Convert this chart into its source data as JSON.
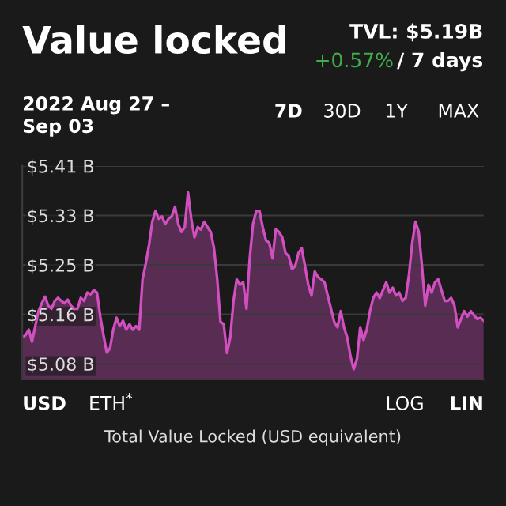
{
  "chart_data": {
    "type": "area",
    "title": "Value locked",
    "annotations": [
      "TVL: $5.19B",
      "+0.57%",
      "/ 7 days",
      "2022 Aug 27 –\nSep 03",
      "7D",
      "30D",
      "1Y",
      "MAX",
      "USD",
      "ETH$^{*}$",
      "LOG",
      "LIN",
      "Total Value Locked (USD equivalent)"
    ],
    "categories": [
      null,
      null,
      null,
      null,
      null,
      null,
      null,
      null,
      null,
      null,
      null,
      null,
      null,
      null,
      null,
      null,
      null,
      null,
      null,
      null,
      null,
      null,
      null,
      null,
      null,
      null,
      null,
      null,
      null,
      null,
      null,
      null,
      null,
      null,
      null,
      null,
      null,
      null,
      null,
      null,
      null,
      null,
      null,
      null,
      null,
      null,
      null,
      null,
      null,
      null,
      null,
      null,
      null,
      null,
      null,
      null,
      null,
      null,
      null,
      null,
      null,
      null,
      null,
      null,
      null,
      null,
      null,
      null,
      null,
      null,
      null,
      null,
      null,
      null,
      null,
      null,
      null,
      null,
      null,
      null,
      null,
      null,
      null,
      null,
      null,
      null,
      null,
      null,
      null,
      null,
      null,
      null,
      null,
      null,
      null,
      null,
      null,
      null,
      null,
      null,
      null,
      null,
      null,
      null,
      null,
      null,
      null,
      null,
      null,
      null,
      null,
      null,
      null,
      null,
      null,
      null,
      null,
      null,
      null,
      null,
      null,
      null,
      null,
      null,
      null,
      null,
      null,
      null,
      null,
      null,
      null,
      null,
      null,
      null,
      null,
      null,
      null,
      null,
      null,
      null,
      null,
      null,
      null
    ],
    "series": [
      {
        "color": "#d24fc0",
        "values": [
          5.124,
          5.128,
          5.137,
          5.117,
          5.143,
          5.168,
          5.181,
          5.192,
          5.177,
          5.172,
          5.185,
          5.19,
          5.185,
          5.181,
          5.187,
          5.177,
          5.172,
          5.172,
          5.19,
          5.185,
          5.199,
          5.196,
          5.203,
          5.199,
          5.159,
          5.128,
          5.099,
          5.106,
          5.137,
          5.157,
          5.143,
          5.152,
          5.137,
          5.146,
          5.137,
          5.143,
          5.137,
          5.221,
          5.247,
          5.278,
          5.317,
          5.335,
          5.322,
          5.326,
          5.313,
          5.322,
          5.326,
          5.342,
          5.313,
          5.3,
          5.308,
          5.366,
          5.322,
          5.291,
          5.308,
          5.304,
          5.317,
          5.308,
          5.3,
          5.273,
          5.221,
          5.15,
          5.146,
          5.098,
          5.124,
          5.185,
          5.221,
          5.212,
          5.216,
          5.172,
          5.256,
          5.313,
          5.335,
          5.335,
          5.308,
          5.286,
          5.282,
          5.256,
          5.304,
          5.3,
          5.291,
          5.265,
          5.26,
          5.238,
          5.243,
          5.265,
          5.273,
          5.243,
          5.212,
          5.194,
          5.234,
          5.225,
          5.221,
          5.216,
          5.194,
          5.172,
          5.15,
          5.141,
          5.168,
          5.141,
          5.124,
          5.093,
          5.071,
          5.089,
          5.141,
          5.12,
          5.137,
          5.168,
          5.19,
          5.199,
          5.19,
          5.203,
          5.216,
          5.199,
          5.207,
          5.194,
          5.199,
          5.185,
          5.19,
          5.229,
          5.282,
          5.317,
          5.3,
          5.243,
          5.177,
          5.212,
          5.199,
          5.216,
          5.221,
          5.203,
          5.185,
          5.185,
          5.19,
          5.177,
          5.141,
          5.155,
          5.168,
          5.159,
          5.168,
          5.161,
          5.155,
          5.157,
          5.152
        ]
      }
    ],
    "ylim": [
      5.054,
      5.41
    ],
    "yticks": [
      {
        "value": 5.08,
        "label": "$5.08 B"
      },
      {
        "value": 5.1625,
        "label": "$5.16 B"
      },
      {
        "value": 5.245,
        "label": "$5.25 B"
      },
      {
        "value": 5.3275,
        "label": "$5.33 B"
      },
      {
        "value": 5.41,
        "label": "$5.41 B"
      }
    ],
    "grid": "y",
    "tick_labels": "y"
  }
}
